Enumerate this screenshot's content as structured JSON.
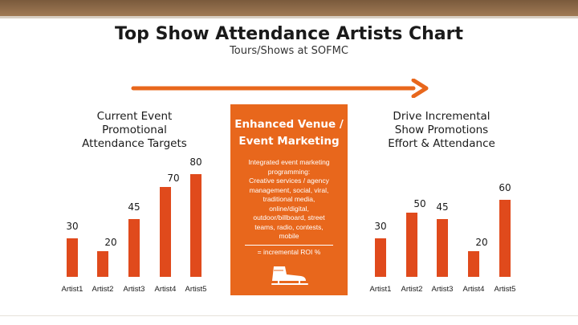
{
  "header": {
    "title": "Top Show Attendance Artists Chart",
    "subtitle": "Tours/Shows at SOFMC"
  },
  "left_panel": {
    "heading_lines": [
      "Current Event",
      "Promotional",
      "Attendance Targets"
    ]
  },
  "center_panel": {
    "heading_lines": [
      "Enhanced Venue /",
      "Event Marketing"
    ],
    "body_lines": [
      "Integrated event marketing",
      "programming:",
      "Creative services / agency",
      "management, social, viral,",
      "traditional media,",
      "online/digital,",
      "outdoor/billboard, street",
      "teams, radio, contests,",
      "mobile"
    ],
    "roi_text": "= incremental ROI %",
    "background_color": "#e8671c",
    "icon": "ice-skate-icon"
  },
  "right_panel": {
    "heading_lines": [
      "Drive Incremental",
      "Show Promotions",
      "Effort & Attendance"
    ]
  },
  "colors": {
    "bar": "#e04a1c",
    "arrow": "#e8671c"
  },
  "chart_data": [
    {
      "type": "bar",
      "categories": [
        "Artist1",
        "Artist2",
        "Artist3",
        "Artist4",
        "Artist5"
      ],
      "values": [
        30,
        20,
        45,
        70,
        80
      ],
      "title": "",
      "xlabel": "",
      "ylabel": "",
      "ylim": [
        0,
        90
      ],
      "grid": false
    },
    {
      "type": "bar",
      "categories": [
        "Artist1",
        "Artist2",
        "Artist3",
        "Artist4",
        "Artist5"
      ],
      "values": [
        30,
        50,
        45,
        20,
        60
      ],
      "title": "",
      "xlabel": "",
      "ylabel": "",
      "ylim": [
        0,
        90
      ],
      "grid": false
    }
  ]
}
